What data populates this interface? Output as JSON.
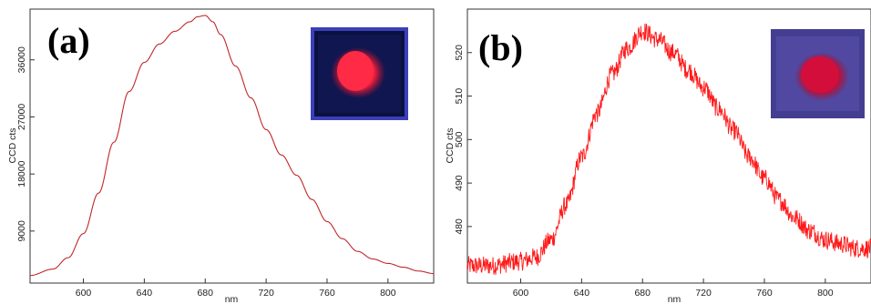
{
  "chart_data": [
    {
      "type": "line",
      "panel_label": "(a)",
      "xlabel": "nm",
      "ylabel": "CCD cts",
      "xlim": [
        565,
        830
      ],
      "ylim": [
        800,
        44000
      ],
      "x_ticks": [
        600,
        640,
        680,
        720,
        760,
        800
      ],
      "y_ticks": [
        9000,
        18000,
        27000,
        36000
      ],
      "x_tick_labels": [
        "600",
        "640",
        "680",
        "720",
        "760",
        "800"
      ],
      "y_tick_labels": [
        "9000",
        "18000",
        "27000",
        "36000"
      ],
      "inset": "photo of red-emitting powder under UV light",
      "series": [
        {
          "color": "#c0282a",
          "noisy": false,
          "x": [
            565,
            580,
            590,
            600,
            610,
            620,
            630,
            640,
            650,
            660,
            670,
            675,
            680,
            685,
            690,
            700,
            710,
            720,
            730,
            740,
            750,
            760,
            770,
            780,
            790,
            800,
            810,
            820,
            830
          ],
          "y": [
            2000,
            3000,
            4800,
            8600,
            15000,
            23000,
            31000,
            35600,
            38500,
            40500,
            42000,
            42800,
            43000,
            42000,
            40000,
            35000,
            30000,
            25000,
            21000,
            17800,
            14000,
            10500,
            7800,
            5800,
            4600,
            3900,
            3300,
            2700,
            2300
          ]
        }
      ]
    },
    {
      "type": "line",
      "panel_label": "(b)",
      "xlabel": "nm",
      "ylabel": "CCD cts",
      "xlim": [
        565,
        830
      ],
      "ylim": [
        467,
        530
      ],
      "x_ticks": [
        600,
        640,
        680,
        720,
        760,
        800
      ],
      "y_ticks": [
        480,
        490,
        500,
        510,
        520
      ],
      "x_tick_labels": [
        "600",
        "640",
        "680",
        "720",
        "760",
        "800"
      ],
      "y_tick_labels": [
        "480",
        "490",
        "500",
        "510",
        "520"
      ],
      "inset": "photo of red-emitting powder under UV light",
      "series": [
        {
          "color": "#ff1a1a",
          "noisy": true,
          "x": [
            565,
            580,
            600,
            610,
            620,
            630,
            640,
            650,
            660,
            670,
            680,
            690,
            700,
            710,
            720,
            730,
            740,
            750,
            760,
            770,
            780,
            790,
            800,
            810,
            820,
            830
          ],
          "y": [
            471,
            471,
            472,
            473,
            477,
            485,
            496,
            506,
            515,
            521,
            525,
            523,
            520,
            516,
            512,
            507,
            502,
            496,
            491,
            486,
            482,
            479,
            477,
            476,
            475,
            475
          ]
        }
      ]
    }
  ]
}
